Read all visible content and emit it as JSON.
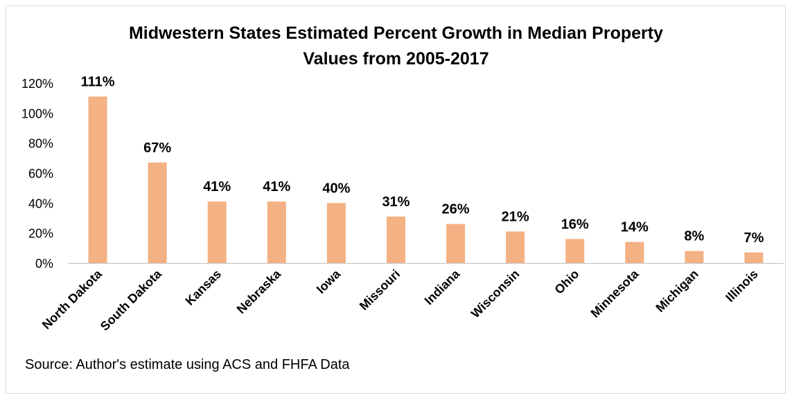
{
  "chart_data": {
    "type": "bar",
    "title_lines": [
      "Midwestern States Estimated Percent Growth in Median Property",
      "Values from 2005-2017"
    ],
    "xlabel": "",
    "ylabel": "",
    "categories": [
      "North Dakota",
      "South Dakota",
      "Kansas",
      "Nebraska",
      "Iowa",
      "Missouri",
      "Indiana",
      "Wisconsin",
      "Ohio",
      "Minnesota",
      "Michigan",
      "Illinois"
    ],
    "values": [
      111,
      67,
      41,
      41,
      40,
      31,
      26,
      21,
      16,
      14,
      8,
      7
    ],
    "data_labels": [
      "111%",
      "67%",
      "41%",
      "41%",
      "40%",
      "31%",
      "26%",
      "21%",
      "16%",
      "14%",
      "8%",
      "7%"
    ],
    "ylim": [
      0,
      120
    ],
    "yticks": [
      0,
      20,
      40,
      60,
      80,
      100,
      120
    ],
    "ytick_labels": [
      "0%",
      "20%",
      "40%",
      "60%",
      "80%",
      "100%",
      "120%"
    ],
    "bar_color": "#f4b183",
    "axis_color": "#bfbfbf",
    "grid": false,
    "legend": "none"
  },
  "source_text": "Source: Author's estimate using ACS and FHFA Data"
}
